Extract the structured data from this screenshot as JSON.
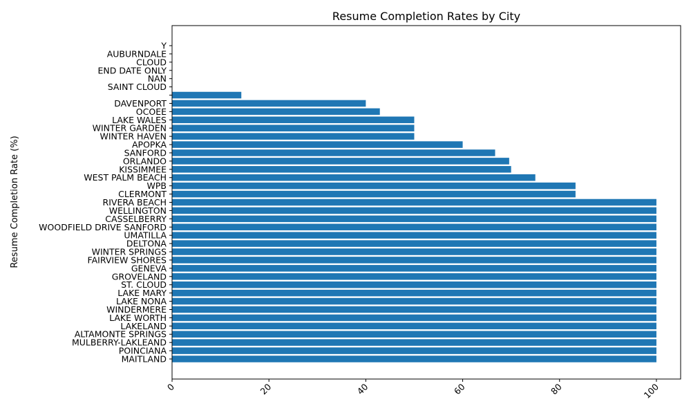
{
  "chart_data": {
    "type": "bar",
    "orientation": "horizontal",
    "title": "Resume Completion Rates by City",
    "xlabel": "",
    "ylabel": "Resume Completion Rate (%)",
    "xlim": [
      0,
      105
    ],
    "xticks": [
      0,
      20,
      40,
      60,
      80,
      100
    ],
    "xtick_labels": [
      "0",
      "20",
      "40",
      "60",
      "80",
      "100"
    ],
    "grid": false,
    "bar_color": "#1f77b4",
    "categories": [
      "Y",
      "AUBURNDALE",
      "CLOUD",
      "END DATE ONLY",
      "NAN",
      "SAINT CLOUD",
      "",
      "DAVENPORT",
      "OCOEE",
      "LAKE WALES",
      "WINTER GARDEN",
      "WINTER HAVEN",
      "APOPKA",
      "SANFORD",
      "ORLANDO",
      "KISSIMMEE",
      "WEST PALM BEACH",
      "WPB",
      "CLERMONT",
      "RIVERA BEACH",
      "WELLINGTON",
      "CASSELBERRY",
      "WOODFIELD DRIVE SANFORD",
      "UMATILLA",
      "DELTONA",
      "WINTER SPRINGS",
      "FAIRVIEW SHORES",
      "GENEVA",
      "GROVELAND",
      "ST. CLOUD",
      "LAKE MARY",
      "LAKE NONA",
      "WINDERMERE",
      "LAKE WORTH",
      "LAKELAND",
      "ALTAMONTE SPRINGS",
      "MULBERRY-LAKLEAND",
      "POINCIANA",
      "MAITLAND"
    ],
    "values": [
      0,
      0,
      0,
      0,
      0,
      0,
      14.3,
      40,
      42.9,
      50,
      50,
      50,
      60,
      66.7,
      69.6,
      70,
      75,
      83.3,
      83.3,
      100,
      100,
      100,
      100,
      100,
      100,
      100,
      100,
      100,
      100,
      100,
      100,
      100,
      100,
      100,
      100,
      100,
      100,
      100,
      100
    ]
  }
}
